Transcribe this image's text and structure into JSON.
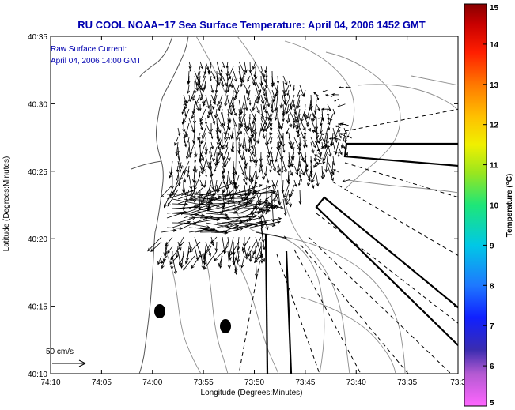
{
  "chart_data": {
    "type": "quiver",
    "title": "RU COOL  NOAA−17  Sea Surface Temperature:  April 04, 2006 1452 GMT",
    "annotation_lines": [
      "Raw Surface Current:",
      "April 04, 2006 14:00 GMT"
    ],
    "xlabel": "Longitude (Degrees:Minutes)",
    "ylabel": "Latitude (Degrees:Minutes)",
    "x_ticks": [
      "74:10",
      "74:05",
      "74:00",
      "73:55",
      "73:50",
      "73:45",
      "73:40",
      "73:35",
      "73:3"
    ],
    "y_ticks": [
      "40:10",
      "40:15",
      "40:20",
      "40:25",
      "40:30",
      "40:35"
    ],
    "scale_label": "50 cm/s",
    "colorbar": {
      "label": "Temperature (°C)",
      "ticks": [
        "5",
        "6",
        "7",
        "8",
        "9",
        "10",
        "11",
        "12",
        "13",
        "14",
        "15"
      ],
      "range": [
        5,
        15
      ]
    },
    "colors": {
      "title": "#0000b0",
      "vectors": "#000000",
      "contours": "#8c8c8c",
      "coast": "#555555"
    }
  }
}
